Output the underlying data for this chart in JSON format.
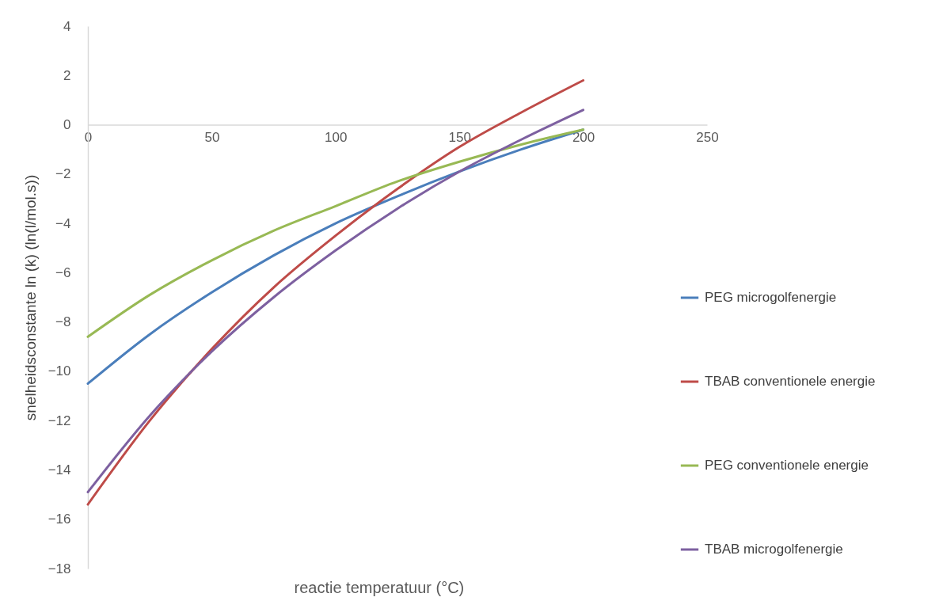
{
  "chart_data": {
    "type": "line",
    "xlabel": "reactie temperatuur (°C)",
    "ylabel": "snelheidsconstante ln (k) (ln(l/mol.s))",
    "x": [
      0,
      25,
      50,
      75,
      100,
      125,
      150,
      175,
      200
    ],
    "xlim": [
      0,
      250
    ],
    "xticks": [
      0,
      50,
      100,
      150,
      200,
      250
    ],
    "ylim": [
      -18,
      4
    ],
    "yticks": [
      -18,
      -16,
      -14,
      -12,
      -10,
      -8,
      -6,
      -4,
      -2,
      0,
      2,
      4
    ],
    "grid": false,
    "legend": "right",
    "marker": "none",
    "line_style": "solid",
    "series": [
      {
        "name": "PEG microgolfenergie",
        "color": "#4a7ebb",
        "values": [
          -10.5,
          -8.5,
          -6.8,
          -5.3,
          -4.0,
          -2.9,
          -1.9,
          -1.0,
          -0.2
        ]
      },
      {
        "name": "TBAB conventionele energie",
        "color": "#be4b48",
        "values": [
          -15.4,
          -12.0,
          -9.1,
          -6.6,
          -4.5,
          -2.6,
          -0.9,
          0.5,
          1.8
        ]
      },
      {
        "name": "PEG conventionele energie",
        "color": "#98b954",
        "values": [
          -8.6,
          -6.9,
          -5.5,
          -4.3,
          -3.3,
          -2.3,
          -1.5,
          -0.8,
          -0.2
        ]
      },
      {
        "name": "TBAB microgolfenergie",
        "color": "#7d60a0",
        "values": [
          -14.9,
          -11.8,
          -9.2,
          -7.0,
          -5.1,
          -3.4,
          -1.9,
          -0.6,
          0.6
        ]
      }
    ]
  }
}
